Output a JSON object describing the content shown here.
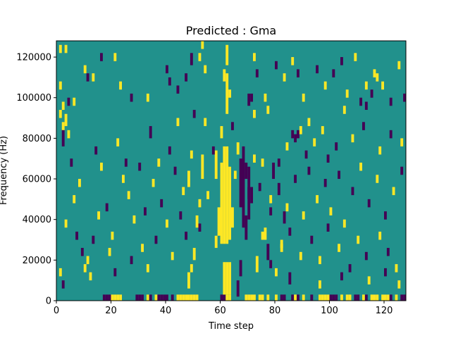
{
  "chart_data": {
    "type": "heatmap",
    "title": "Predicted : Gma",
    "xlabel": "Time step",
    "ylabel": "Frequency (Hz)",
    "xlim": [
      0,
      128
    ],
    "ylim": [
      0,
      128000
    ],
    "xticks": [
      0,
      20,
      40,
      60,
      80,
      100,
      120
    ],
    "xtick_labels": [
      "0",
      "20",
      "40",
      "60",
      "80",
      "100",
      "120"
    ],
    "yticks": [
      0,
      20000,
      40000,
      60000,
      80000,
      100000,
      120000
    ],
    "ytick_labels": [
      "0",
      "20000",
      "40000",
      "60000",
      "80000",
      "100000",
      "120000"
    ],
    "grid": false,
    "legend": "none",
    "n_time_steps": 128,
    "n_freq_bins": 128,
    "bin_hz": 1000,
    "colors": {
      "background": "#21918c",
      "high": "#fde725",
      "low": "#440154"
    },
    "cell_encoding": "default value 0 = background; cells list [time_step, frequency_bin_start, frequency_bin_count, value] with value 1 = high, -1 = low",
    "cells": [
      [
        17,
        0,
        3,
        -1
      ],
      [
        18,
        0,
        3,
        -1
      ],
      [
        19,
        0,
        3,
        -1
      ],
      [
        20,
        0,
        3,
        1
      ],
      [
        21,
        0,
        3,
        1
      ],
      [
        22,
        0,
        3,
        1
      ],
      [
        23,
        0,
        3,
        1
      ],
      [
        29,
        0,
        3,
        -1
      ],
      [
        30,
        0,
        3,
        -1
      ],
      [
        31,
        0,
        3,
        -1
      ],
      [
        33,
        0,
        3,
        1
      ],
      [
        34,
        0,
        3,
        -1
      ],
      [
        36,
        0,
        3,
        1
      ],
      [
        37,
        0,
        3,
        -1
      ],
      [
        38,
        0,
        3,
        -1
      ],
      [
        39,
        0,
        3,
        -1
      ],
      [
        40,
        0,
        3,
        -1
      ],
      [
        42,
        0,
        3,
        -1
      ],
      [
        44,
        0,
        3,
        1
      ],
      [
        45,
        0,
        3,
        1
      ],
      [
        46,
        0,
        3,
        1
      ],
      [
        47,
        0,
        3,
        1
      ],
      [
        48,
        0,
        3,
        1
      ],
      [
        49,
        0,
        3,
        1
      ],
      [
        50,
        0,
        3,
        1
      ],
      [
        51,
        0,
        3,
        1
      ],
      [
        60,
        0,
        3,
        -1
      ],
      [
        61,
        0,
        3,
        -1
      ],
      [
        62,
        0,
        3,
        1
      ],
      [
        63,
        0,
        3,
        1
      ],
      [
        69,
        0,
        3,
        1
      ],
      [
        70,
        0,
        3,
        1
      ],
      [
        71,
        0,
        3,
        1
      ],
      [
        72,
        0,
        3,
        1
      ],
      [
        74,
        0,
        3,
        1
      ],
      [
        75,
        0,
        3,
        1
      ],
      [
        77,
        0,
        3,
        1
      ],
      [
        80,
        0,
        3,
        1
      ],
      [
        82,
        0,
        3,
        -1
      ],
      [
        83,
        0,
        3,
        -1
      ],
      [
        86,
        0,
        3,
        -1
      ],
      [
        87,
        0,
        3,
        1
      ],
      [
        88,
        0,
        3,
        -1
      ],
      [
        90,
        0,
        3,
        1
      ],
      [
        93,
        0,
        3,
        -1
      ],
      [
        96,
        0,
        3,
        1
      ],
      [
        97,
        0,
        3,
        1
      ],
      [
        98,
        0,
        3,
        1
      ],
      [
        99,
        0,
        3,
        1
      ],
      [
        100,
        0,
        3,
        -1
      ],
      [
        101,
        0,
        3,
        -1
      ],
      [
        102,
        0,
        3,
        -1
      ],
      [
        104,
        0,
        3,
        1
      ],
      [
        106,
        0,
        3,
        1
      ],
      [
        107,
        0,
        3,
        1
      ],
      [
        109,
        0,
        3,
        -1
      ],
      [
        110,
        0,
        3,
        -1
      ],
      [
        112,
        0,
        3,
        1
      ],
      [
        113,
        0,
        3,
        -1
      ],
      [
        115,
        0,
        3,
        1
      ],
      [
        116,
        0,
        3,
        1
      ],
      [
        117,
        0,
        3,
        1
      ],
      [
        119,
        0,
        3,
        1
      ],
      [
        120,
        0,
        3,
        1
      ],
      [
        121,
        0,
        3,
        1
      ],
      [
        122,
        0,
        3,
        -1
      ],
      [
        124,
        0,
        3,
        1
      ],
      [
        126,
        0,
        3,
        -1
      ],
      [
        127,
        0,
        3,
        -1
      ],
      [
        61,
        3,
        16,
        1
      ],
      [
        62,
        3,
        16,
        1
      ],
      [
        63,
        3,
        16,
        1
      ],
      [
        60,
        28,
        40,
        1
      ],
      [
        61,
        28,
        48,
        1
      ],
      [
        62,
        28,
        48,
        1
      ],
      [
        63,
        30,
        36,
        1
      ],
      [
        64,
        36,
        10,
        1
      ],
      [
        58,
        26,
        6,
        1
      ],
      [
        59,
        32,
        14,
        1
      ],
      [
        58,
        60,
        14,
        1
      ],
      [
        60,
        80,
        6,
        1
      ],
      [
        62,
        92,
        20,
        1
      ],
      [
        61,
        108,
        6,
        1
      ],
      [
        63,
        100,
        4,
        1
      ],
      [
        62,
        116,
        10,
        1
      ],
      [
        67,
        46,
        24,
        -1
      ],
      [
        68,
        36,
        40,
        -1
      ],
      [
        69,
        30,
        12,
        -1
      ],
      [
        70,
        40,
        26,
        -1
      ],
      [
        71,
        48,
        8,
        -1
      ],
      [
        66,
        2,
        8,
        -1
      ],
      [
        67,
        12,
        8,
        -1
      ],
      [
        69,
        60,
        8,
        -1
      ],
      [
        70,
        50,
        6,
        -1
      ],
      [
        65,
        60,
        4,
        1
      ],
      [
        66,
        72,
        6,
        1
      ],
      [
        64,
        84,
        4,
        -1
      ],
      [
        70,
        96,
        6,
        -1
      ],
      [
        71,
        98,
        4,
        -1
      ],
      [
        73,
        14,
        8,
        1
      ],
      [
        72,
        90,
        4,
        1
      ],
      [
        75,
        66,
        4,
        1
      ],
      [
        76,
        30,
        6,
        1
      ],
      [
        77,
        20,
        8,
        -1
      ],
      [
        78,
        42,
        4,
        -1
      ],
      [
        79,
        60,
        8,
        -1
      ],
      [
        80,
        12,
        4,
        1
      ],
      [
        81,
        52,
        6,
        -1
      ],
      [
        82,
        26,
        4,
        1
      ],
      [
        83,
        38,
        6,
        -1
      ],
      [
        84,
        74,
        4,
        1
      ],
      [
        85,
        8,
        6,
        -1
      ],
      [
        48,
        6,
        8,
        1
      ],
      [
        49,
        14,
        4,
        1
      ],
      [
        50,
        20,
        6,
        1
      ],
      [
        51,
        36,
        6,
        1
      ],
      [
        52,
        46,
        4,
        1
      ],
      [
        49,
        70,
        4,
        1
      ],
      [
        48,
        56,
        8,
        1
      ],
      [
        53,
        60,
        12,
        1
      ],
      [
        50,
        90,
        4,
        -1
      ],
      [
        55,
        50,
        4,
        1
      ],
      [
        57,
        72,
        4,
        -1
      ],
      [
        54,
        86,
        4,
        1
      ],
      [
        52,
        34,
        4,
        -1
      ],
      [
        1,
        90,
        4,
        1
      ],
      [
        2,
        84,
        4,
        1
      ],
      [
        3,
        86,
        6,
        1
      ],
      [
        2,
        76,
        8,
        -1
      ],
      [
        4,
        80,
        4,
        1
      ],
      [
        1,
        12,
        4,
        1
      ],
      [
        2,
        6,
        4,
        -1
      ],
      [
        3,
        36,
        4,
        1
      ],
      [
        5,
        66,
        4,
        -1
      ],
      [
        6,
        48,
        4,
        1
      ],
      [
        7,
        30,
        4,
        -1
      ],
      [
        8,
        56,
        4,
        1
      ],
      [
        9,
        22,
        4,
        -1
      ],
      [
        10,
        14,
        4,
        1
      ],
      [
        11,
        18,
        4,
        1
      ],
      [
        12,
        10,
        4,
        1
      ],
      [
        13,
        28,
        4,
        -1
      ],
      [
        14,
        72,
        4,
        -1
      ],
      [
        15,
        40,
        4,
        1
      ],
      [
        16,
        64,
        4,
        1
      ],
      [
        18,
        44,
        4,
        -1
      ],
      [
        19,
        22,
        4,
        1
      ],
      [
        20,
        30,
        4,
        1
      ],
      [
        21,
        12,
        4,
        -1
      ],
      [
        22,
        76,
        4,
        1
      ],
      [
        24,
        58,
        4,
        1
      ],
      [
        25,
        66,
        4,
        -1
      ],
      [
        26,
        50,
        4,
        1
      ],
      [
        27,
        18,
        4,
        -1
      ],
      [
        28,
        38,
        4,
        1
      ],
      [
        30,
        64,
        4,
        -1
      ],
      [
        31,
        24,
        4,
        1
      ],
      [
        32,
        42,
        4,
        -1
      ],
      [
        33,
        14,
        4,
        1
      ],
      [
        34,
        80,
        6,
        -1
      ],
      [
        35,
        56,
        4,
        1
      ],
      [
        36,
        28,
        4,
        -1
      ],
      [
        37,
        66,
        4,
        1
      ],
      [
        38,
        46,
        4,
        -1
      ],
      [
        40,
        36,
        4,
        1
      ],
      [
        41,
        72,
        4,
        -1
      ],
      [
        42,
        20,
        4,
        1
      ],
      [
        43,
        62,
        4,
        -1
      ],
      [
        44,
        86,
        4,
        1
      ],
      [
        45,
        40,
        4,
        -1
      ],
      [
        46,
        52,
        4,
        1
      ],
      [
        47,
        30,
        4,
        -1
      ],
      [
        1,
        122,
        4,
        1
      ],
      [
        3,
        122,
        4,
        1
      ],
      [
        16,
        118,
        4,
        -1
      ],
      [
        21,
        118,
        4,
        1
      ],
      [
        10,
        112,
        4,
        1
      ],
      [
        11,
        108,
        4,
        -1
      ],
      [
        13,
        108,
        4,
        1
      ],
      [
        23,
        104,
        4,
        1
      ],
      [
        1,
        104,
        4,
        1
      ],
      [
        6,
        96,
        4,
        1
      ],
      [
        2,
        94,
        4,
        1
      ],
      [
        4,
        96,
        4,
        -1
      ],
      [
        27,
        98,
        4,
        -1
      ],
      [
        33,
        98,
        4,
        1
      ],
      [
        40,
        112,
        4,
        -1
      ],
      [
        41,
        106,
        4,
        -1
      ],
      [
        44,
        102,
        4,
        -1
      ],
      [
        47,
        108,
        4,
        -1
      ],
      [
        49,
        116,
        6,
        -1
      ],
      [
        52,
        118,
        4,
        1
      ],
      [
        53,
        124,
        4,
        1
      ],
      [
        54,
        112,
        4,
        1
      ],
      [
        72,
        118,
        4,
        1
      ],
      [
        73,
        110,
        4,
        -1
      ],
      [
        76,
        98,
        4,
        1
      ],
      [
        77,
        92,
        4,
        1
      ],
      [
        80,
        114,
        4,
        -1
      ],
      [
        83,
        108,
        4,
        1
      ],
      [
        86,
        116,
        4,
        1
      ],
      [
        88,
        110,
        4,
        -1
      ],
      [
        90,
        98,
        4,
        1
      ],
      [
        92,
        86,
        4,
        1
      ],
      [
        95,
        112,
        4,
        -1
      ],
      [
        98,
        104,
        4,
        1
      ],
      [
        101,
        110,
        4,
        -1
      ],
      [
        104,
        116,
        4,
        -1
      ],
      [
        106,
        100,
        4,
        1
      ],
      [
        109,
        118,
        4,
        1
      ],
      [
        113,
        94,
        4,
        -1
      ],
      [
        116,
        110,
        4,
        1
      ],
      [
        119,
        104,
        4,
        1
      ],
      [
        122,
        96,
        4,
        -1
      ],
      [
        125,
        114,
        4,
        1
      ],
      [
        127,
        98,
        4,
        -1
      ],
      [
        72,
        68,
        4,
        1
      ],
      [
        74,
        54,
        4,
        -1
      ],
      [
        78,
        48,
        4,
        1
      ],
      [
        81,
        66,
        4,
        -1
      ],
      [
        84,
        44,
        4,
        1
      ],
      [
        87,
        58,
        4,
        -1
      ],
      [
        90,
        40,
        4,
        1
      ],
      [
        92,
        62,
        4,
        -1
      ],
      [
        95,
        48,
        4,
        1
      ],
      [
        98,
        56,
        4,
        -1
      ],
      [
        100,
        42,
        4,
        1
      ],
      [
        103,
        60,
        4,
        -1
      ],
      [
        105,
        36,
        4,
        1
      ],
      [
        108,
        52,
        4,
        -1
      ],
      [
        111,
        64,
        4,
        1
      ],
      [
        114,
        46,
        4,
        -1
      ],
      [
        117,
        58,
        4,
        1
      ],
      [
        120,
        40,
        4,
        -1
      ],
      [
        123,
        52,
        4,
        1
      ],
      [
        126,
        62,
        4,
        -1
      ],
      [
        75,
        30,
        4,
        1
      ],
      [
        78,
        16,
        4,
        -1
      ],
      [
        82,
        24,
        4,
        1
      ],
      [
        85,
        32,
        4,
        -1
      ],
      [
        89,
        20,
        4,
        1
      ],
      [
        93,
        28,
        4,
        -1
      ],
      [
        96,
        18,
        4,
        1
      ],
      [
        99,
        34,
        4,
        -1
      ],
      [
        103,
        24,
        4,
        1
      ],
      [
        107,
        14,
        4,
        -1
      ],
      [
        110,
        28,
        4,
        1
      ],
      [
        113,
        20,
        4,
        -1
      ],
      [
        118,
        30,
        4,
        1
      ],
      [
        121,
        22,
        4,
        -1
      ],
      [
        124,
        14,
        4,
        1
      ],
      [
        97,
        82,
        4,
        1
      ],
      [
        102,
        74,
        4,
        -1
      ],
      [
        108,
        78,
        4,
        1
      ],
      [
        112,
        84,
        4,
        -1
      ],
      [
        118,
        72,
        4,
        1
      ],
      [
        122,
        80,
        4,
        -1
      ],
      [
        126,
        76,
        4,
        1
      ],
      [
        91,
        70,
        4,
        -1
      ],
      [
        94,
        76,
        4,
        1
      ],
      [
        99,
        68,
        4,
        -1
      ],
      [
        86,
        80,
        4,
        -1
      ],
      [
        87,
        78,
        4,
        -1
      ],
      [
        88,
        80,
        4,
        -1
      ],
      [
        89,
        82,
        4,
        1
      ],
      [
        113,
        104,
        4,
        1
      ],
      [
        115,
        100,
        4,
        -1
      ],
      [
        117,
        108,
        4,
        1
      ],
      [
        111,
        96,
        4,
        -1
      ],
      [
        105,
        92,
        4,
        1
      ],
      [
        96,
        6,
        4,
        1
      ],
      [
        104,
        10,
        4,
        -1
      ],
      [
        114,
        8,
        4,
        1
      ],
      [
        120,
        12,
        4,
        -1
      ],
      [
        125,
        6,
        4,
        1
      ]
    ]
  }
}
